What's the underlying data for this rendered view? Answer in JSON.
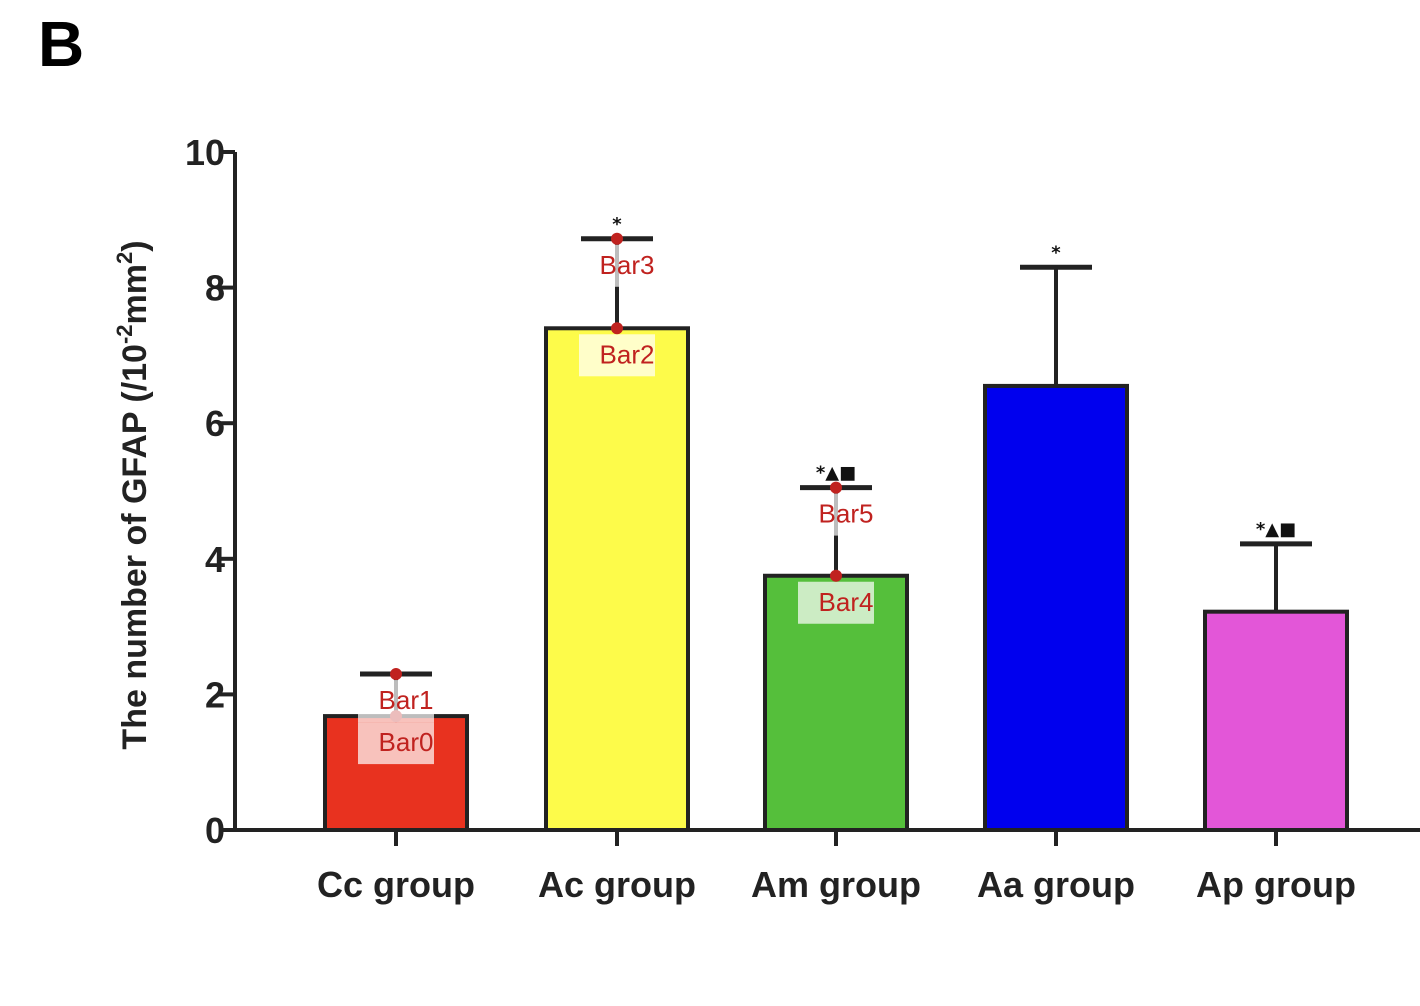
{
  "panel_label": "B",
  "chart_data": {
    "type": "bar",
    "categories": [
      "Cc group",
      "Ac group",
      "Am group",
      "Aa group",
      "Ap group"
    ],
    "values": [
      1.68,
      7.4,
      3.75,
      6.55,
      3.22
    ],
    "error_upper": [
      2.3,
      8.72,
      5.05,
      8.3,
      4.22
    ],
    "significance": [
      "",
      "*",
      "*▲■",
      "*",
      "*▲■"
    ],
    "bar_colors": [
      "#e8321f",
      "#fdfb4a",
      "#55bf3b",
      "#0000ee",
      "#e356d8"
    ],
    "ylabel_main": "The number of GFAP (/10",
    "ylabel_sup1": "-2",
    "ylabel_mid": "mm",
    "ylabel_sup2": "2",
    "ylabel_end": ")",
    "ylim": [
      0,
      10
    ],
    "yticks": [
      0,
      2,
      4,
      6,
      8,
      10
    ],
    "grid": false
  },
  "point_annotations": [
    {
      "label": "Bar0",
      "category_index": 0,
      "value": 1.68
    },
    {
      "label": "Bar1",
      "category_index": 0,
      "value": 2.3
    },
    {
      "label": "Bar2",
      "category_index": 1,
      "value": 7.4
    },
    {
      "label": "Bar3",
      "category_index": 1,
      "value": 8.72
    },
    {
      "label": "Bar4",
      "category_index": 2,
      "value": 3.75
    },
    {
      "label": "Bar5",
      "category_index": 2,
      "value": 5.05
    }
  ]
}
